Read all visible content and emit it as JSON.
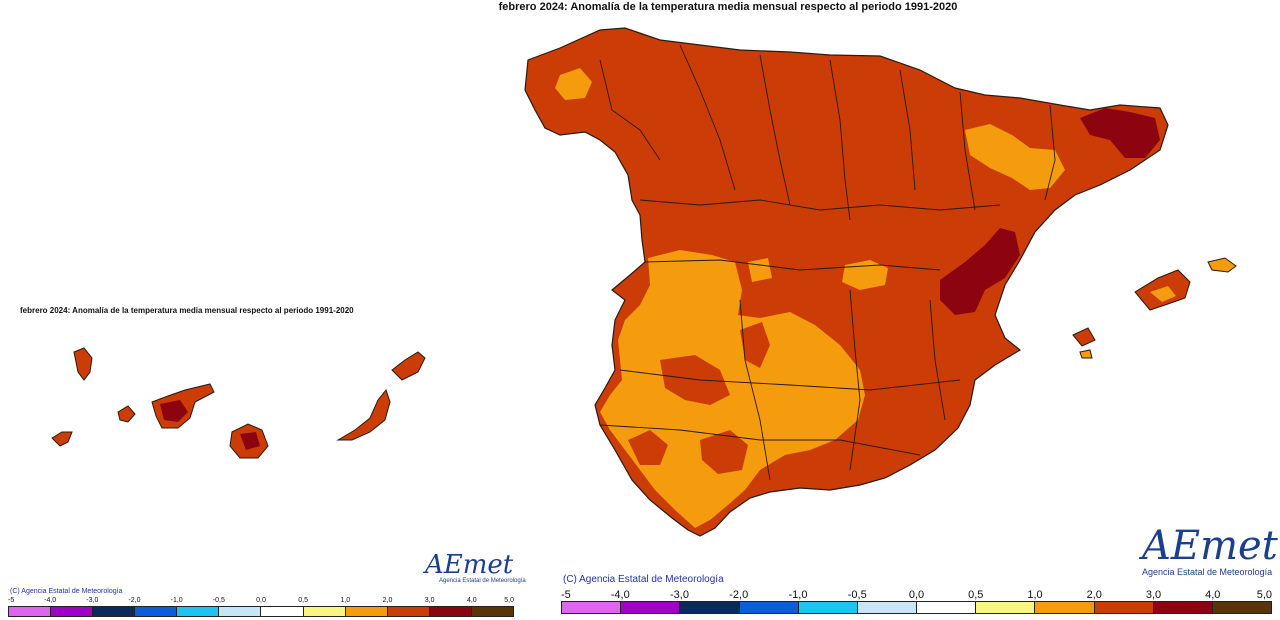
{
  "main_map": {
    "title": "febrero 2024: Anomalía de la temperatura media mensual respecto al periodo 1991-2020",
    "copyright": "(C) Agencia Estatal de Meteorología"
  },
  "canarias_map": {
    "title": "febrero 2024: Anomalía de la temperatura media mensual respecto al periodo 1991-2020",
    "copyright": "(C) Agencia Estatal de Meteorología"
  },
  "logo": {
    "wordmark": "AEmet",
    "subtitle": "Agencia Estatal de Meteorología"
  },
  "legend": {
    "main_ticks": [
      "-5",
      "-4,0",
      "-3,0",
      "-2,0",
      "-1,0",
      "-0,5",
      "0,0",
      "0,5",
      "1,0",
      "2,0",
      "3,0",
      "4,0",
      "5,0"
    ],
    "canarias_ticks": [
      "-5",
      "-4,0",
      "-3,0",
      "-2,0",
      "-1,0",
      "-0,5",
      "0,0",
      "0,5",
      "1,0",
      "2,0",
      "3,0",
      "4,0",
      "5,0"
    ],
    "colors": [
      "#dd66ee",
      "#a000c8",
      "#0a2a5e",
      "#0b5ed7",
      "#1cc4f0",
      "#c8e4f6",
      "#ffffff",
      "#f8f680",
      "#f49b0e",
      "#cc3c06",
      "#8c0410",
      "#5a3406"
    ]
  },
  "map_colors": {
    "range_1_2": "#f49b0e",
    "range_2_3": "#cc3c06",
    "range_3_4": "#8c0410",
    "range_0_5_1": "#f8f680",
    "ocean": "#ffffff",
    "borders": "#2a1a10"
  }
}
